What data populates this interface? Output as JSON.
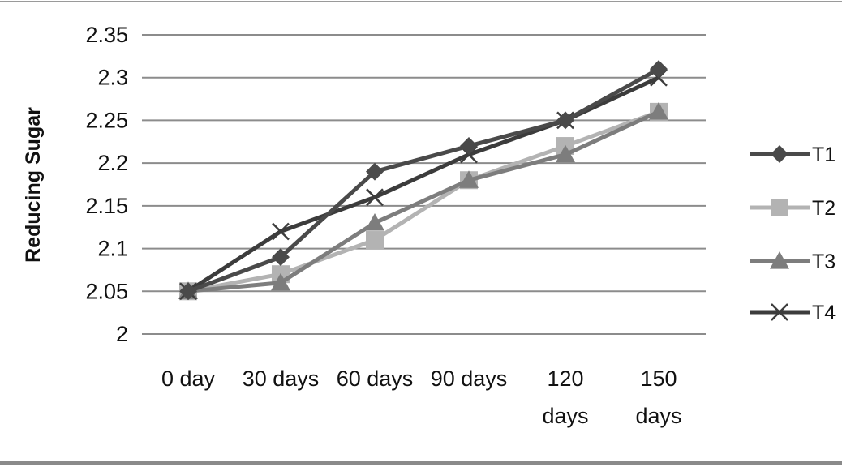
{
  "chart_data": {
    "type": "line",
    "title": "",
    "xlabel": "",
    "ylabel": "Reducing Sugar",
    "categories": [
      "0 day",
      "30 days",
      "60 days",
      "90 days",
      "120 days",
      "150 days"
    ],
    "category_lines": [
      [
        "0 day"
      ],
      [
        "30 days"
      ],
      [
        "60 days"
      ],
      [
        "90 days"
      ],
      [
        "120",
        "days"
      ],
      [
        "150",
        "days"
      ]
    ],
    "ylim": [
      2,
      2.35
    ],
    "yticks": [
      "2",
      "2.05",
      "2.1",
      "2.15",
      "2.2",
      "2.25",
      "2.3",
      "2.35"
    ],
    "grid": true,
    "legend_position": "right",
    "series": [
      {
        "name": "T1",
        "values": [
          2.05,
          2.09,
          2.19,
          2.22,
          2.25,
          2.31
        ],
        "color": "#4a4a4a",
        "marker": "diamond-icon"
      },
      {
        "name": "T2",
        "values": [
          2.05,
          2.07,
          2.11,
          2.18,
          2.22,
          2.26
        ],
        "color": "#b3b3b3",
        "marker": "square-icon"
      },
      {
        "name": "T3",
        "values": [
          2.05,
          2.06,
          2.13,
          2.18,
          2.21,
          2.26
        ],
        "color": "#7d7d7d",
        "marker": "triangle-icon"
      },
      {
        "name": "T4",
        "values": [
          2.05,
          2.12,
          2.16,
          2.21,
          2.25,
          2.3
        ],
        "color": "#3c3c3c",
        "marker": "x-icon"
      }
    ]
  }
}
